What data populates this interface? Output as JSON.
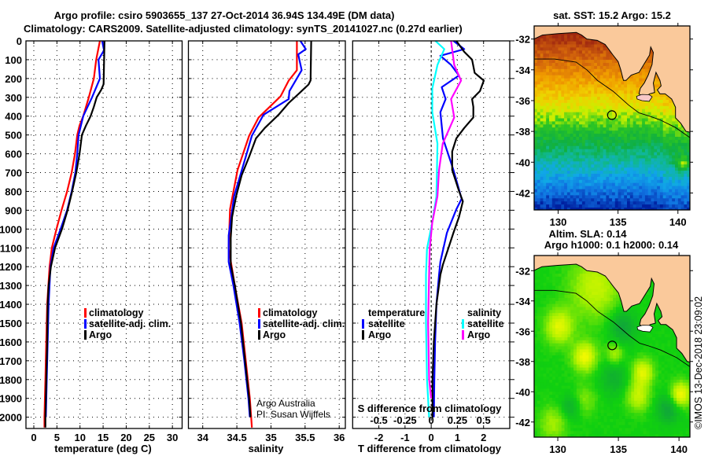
{
  "title": {
    "line1": "Argo profile: csiro 5903655_137 27-Oct-2014 36.94S 134.49E (DM data)",
    "line2": "Climatology: CARS2009. Satellite-adjusted climatology: synTS_20141027.nc (0.27d earlier)"
  },
  "credit": {
    "line1": "Argo Australia",
    "line2": "PI: Susan Wijffels"
  },
  "stamp": "©IMOS 13-Dec-2018 23:09:02",
  "colors": {
    "climatology": "#ff0000",
    "satellite": "#0000ff",
    "argo": "#000000",
    "sal_satellite": "#00ffff",
    "sal_argo": "#ff00ff",
    "land": "#fac99b"
  },
  "chart_data": [
    {
      "type": "line",
      "name": "temperature-profile",
      "xlabel": "temperature (deg C)",
      "ylabel": "depth",
      "xlim": [
        -1.7,
        32.1
      ],
      "ylim": [
        2060,
        0
      ],
      "xticks": [
        "0",
        "5",
        "10",
        "15",
        "20",
        "25",
        "30"
      ],
      "xtick_values": [
        0,
        5,
        10,
        15,
        20,
        25,
        30
      ],
      "yticks": [
        "0",
        "100",
        "200",
        "300",
        "400",
        "500",
        "600",
        "700",
        "800",
        "900",
        "1000",
        "1100",
        "1200",
        "1300",
        "1400",
        "1500",
        "1600",
        "1700",
        "1800",
        "1900",
        "2000"
      ],
      "ytick_values": [
        0,
        100,
        200,
        300,
        400,
        500,
        600,
        700,
        800,
        900,
        1000,
        1100,
        1200,
        1300,
        1400,
        1500,
        1600,
        1700,
        1800,
        1900,
        2000
      ],
      "grid": true,
      "legend": [
        "climatology",
        "satellite-adj. clim.",
        "Argo"
      ],
      "series": [
        {
          "name": "climatology",
          "color": "#ff0000",
          "points": [
            [
              0,
              14.3
            ],
            [
              100,
              13.5
            ],
            [
              200,
              13.0
            ],
            [
              300,
              11.9
            ],
            [
              400,
              10.7
            ],
            [
              450,
              9.9
            ],
            [
              500,
              9.4
            ],
            [
              600,
              8.9
            ],
            [
              700,
              8.2
            ],
            [
              800,
              7.2
            ],
            [
              900,
              6.0
            ],
            [
              1000,
              4.9
            ],
            [
              1100,
              3.9
            ],
            [
              1200,
              3.4
            ],
            [
              1400,
              2.9
            ],
            [
              1600,
              2.7
            ],
            [
              1800,
              2.5
            ],
            [
              2000,
              2.3
            ],
            [
              2055,
              2.3
            ]
          ]
        },
        {
          "name": "satellite-adj. clim.",
          "color": "#0000ff",
          "points": [
            [
              0,
              14.8
            ],
            [
              50,
              15.2
            ],
            [
              100,
              14.0
            ],
            [
              200,
              14.3
            ],
            [
              300,
              12.6
            ],
            [
              400,
              10.7
            ],
            [
              500,
              9.7
            ],
            [
              600,
              9.4
            ],
            [
              700,
              9.0
            ],
            [
              800,
              8.2
            ],
            [
              900,
              7.2
            ],
            [
              1000,
              5.8
            ],
            [
              1100,
              4.3
            ],
            [
              1200,
              3.6
            ],
            [
              1400,
              3.2
            ],
            [
              1600,
              3.0
            ],
            [
              1800,
              2.8
            ],
            [
              2000,
              2.6
            ]
          ]
        },
        {
          "name": "Argo",
          "color": "#000000",
          "points": [
            [
              0,
              15.3
            ],
            [
              230,
              15.1
            ],
            [
              260,
              14.6
            ],
            [
              300,
              13.6
            ],
            [
              350,
              13.0
            ],
            [
              400,
              12.3
            ],
            [
              450,
              11.3
            ],
            [
              500,
              10.4
            ],
            [
              600,
              9.9
            ],
            [
              700,
              9.2
            ],
            [
              800,
              8.3
            ],
            [
              900,
              7.3
            ],
            [
              1000,
              6.1
            ],
            [
              1100,
              4.6
            ],
            [
              1200,
              3.7
            ],
            [
              1300,
              3.2
            ],
            [
              1400,
              3.0
            ],
            [
              1600,
              2.9
            ],
            [
              1800,
              2.7
            ],
            [
              2000,
              2.5
            ],
            [
              2055,
              2.5
            ]
          ]
        }
      ]
    },
    {
      "type": "line",
      "name": "salinity-profile",
      "xlabel": "salinity",
      "xlim": [
        33.79,
        36.09
      ],
      "ylim": [
        2060,
        0
      ],
      "xticks": [
        "34",
        "34.5",
        "35",
        "35.5",
        "36"
      ],
      "xtick_values": [
        34,
        34.5,
        35,
        35.5,
        36
      ],
      "grid": true,
      "legend": [
        "climatology",
        "satellite-adj. clim.",
        "Argo"
      ],
      "series": [
        {
          "name": "climatology",
          "color": "#ff0000",
          "points": [
            [
              0,
              35.38
            ],
            [
              156,
              35.38
            ],
            [
              211,
              35.26
            ],
            [
              295,
              35.14
            ],
            [
              407,
              34.82
            ],
            [
              504,
              34.68
            ],
            [
              686,
              34.51
            ],
            [
              895,
              34.4
            ],
            [
              1104,
              34.38
            ],
            [
              1300,
              34.47
            ],
            [
              1500,
              34.57
            ],
            [
              1700,
              34.63
            ],
            [
              1900,
              34.69
            ],
            [
              2055,
              34.72
            ]
          ]
        },
        {
          "name": "satellite-adj. clim.",
          "color": "#0000ff",
          "points": [
            [
              0,
              35.43
            ],
            [
              44,
              35.51
            ],
            [
              72,
              35.4
            ],
            [
              156,
              35.45
            ],
            [
              267,
              35.27
            ],
            [
              309,
              35.26
            ],
            [
              393,
              34.89
            ],
            [
              504,
              34.72
            ],
            [
              616,
              34.63
            ],
            [
              825,
              34.46
            ],
            [
              1034,
              34.38
            ],
            [
              1174,
              34.38
            ],
            [
              1300,
              34.45
            ],
            [
              1500,
              34.54
            ],
            [
              1700,
              34.61
            ],
            [
              1900,
              34.67
            ],
            [
              2000,
              34.69
            ]
          ]
        },
        {
          "name": "Argo",
          "color": "#000000",
          "points": [
            [
              0,
              35.59
            ],
            [
              210,
              35.58
            ],
            [
              232,
              35.55
            ],
            [
              280,
              35.41
            ],
            [
              330,
              35.26
            ],
            [
              393,
              35.11
            ],
            [
              463,
              34.91
            ],
            [
              518,
              34.78
            ],
            [
              616,
              34.68
            ],
            [
              714,
              34.57
            ],
            [
              825,
              34.49
            ],
            [
              937,
              34.43
            ],
            [
              1048,
              34.41
            ],
            [
              1188,
              34.41
            ],
            [
              1300,
              34.47
            ],
            [
              1500,
              34.56
            ],
            [
              1700,
              34.62
            ],
            [
              1900,
              34.68
            ],
            [
              2000,
              34.7
            ]
          ]
        }
      ]
    },
    {
      "type": "line",
      "name": "difference-profile",
      "xlabel": "T difference from climatology",
      "x2label": "S difference from climatology",
      "xlim": [
        -3,
        3
      ],
      "x2lim": [
        -0.75,
        0.75
      ],
      "ylim": [
        2060,
        0
      ],
      "xticks": [
        "-2",
        "-1",
        "0",
        "1",
        "2"
      ],
      "xtick_values": [
        -2,
        -1,
        0,
        1,
        2
      ],
      "x2ticks": [
        "-0.5",
        "-0.25",
        "0",
        "0.25",
        "0.5"
      ],
      "grid": true,
      "legend": {
        "temperature": {
          "title": "temperature",
          "items": [
            "satellite",
            "Argo"
          ]
        },
        "salinity": {
          "title": "salinity",
          "items": [
            "satellite",
            "Argo"
          ]
        }
      },
      "series": [
        {
          "name": "T satellite",
          "axis": "T",
          "color": "#0000ff",
          "points": [
            [
              0,
              0.85
            ],
            [
              44,
              1.26
            ],
            [
              79,
              0.35
            ],
            [
              128,
              0.76
            ],
            [
              184,
              1.06
            ],
            [
              246,
              0.4
            ],
            [
              309,
              0.55
            ],
            [
              379,
              0.35
            ],
            [
              518,
              0.45
            ],
            [
              686,
              0.85
            ],
            [
              839,
              1.16
            ],
            [
              895,
              0.96
            ],
            [
              1020,
              0.6
            ],
            [
              1174,
              0.35
            ],
            [
              1243,
              0.3
            ],
            [
              1400,
              0.2
            ],
            [
              1600,
              0.15
            ],
            [
              1800,
              0.12
            ],
            [
              2000,
              0.1
            ]
          ]
        },
        {
          "name": "T Argo",
          "axis": "T",
          "color": "#000000",
          "points": [
            [
              0,
              0.96
            ],
            [
              58,
              1.26
            ],
            [
              100,
              1.56
            ],
            [
              170,
              1.66
            ],
            [
              211,
              2.01
            ],
            [
              267,
              1.86
            ],
            [
              309,
              1.56
            ],
            [
              351,
              1.61
            ],
            [
              407,
              1.61
            ],
            [
              463,
              1.26
            ],
            [
              518,
              0.96
            ],
            [
              588,
              0.8
            ],
            [
              686,
              0.8
            ],
            [
              797,
              1.06
            ],
            [
              853,
              1.21
            ],
            [
              937,
              1.06
            ],
            [
              1020,
              0.85
            ],
            [
              1104,
              0.65
            ],
            [
              1188,
              0.45
            ],
            [
              1243,
              0.35
            ],
            [
              1400,
              0.2
            ],
            [
              1600,
              0.1
            ],
            [
              1800,
              0.05
            ],
            [
              2000,
              0.05
            ]
          ]
        },
        {
          "name": "S satellite",
          "axis": "S",
          "color": "#00ffff",
          "points": [
            [
              0,
              0.04
            ],
            [
              44,
              0.125
            ],
            [
              128,
              0.06
            ],
            [
              253,
              0.01
            ],
            [
              379,
              0.01
            ],
            [
              546,
              0.06
            ],
            [
              825,
              0.05
            ],
            [
              965,
              0.01
            ],
            [
              1104,
              -0.04
            ],
            [
              1243,
              -0.05
            ],
            [
              1500,
              -0.05
            ],
            [
              1800,
              -0.04
            ],
            [
              2000,
              -0.02
            ]
          ]
        },
        {
          "name": "S Argo",
          "axis": "S",
          "color": "#ff00ff",
          "points": [
            [
              0,
              0.19
            ],
            [
              128,
              0.22
            ],
            [
              211,
              0.285
            ],
            [
              309,
              0.19
            ],
            [
              407,
              0.22
            ],
            [
              546,
              0.11
            ],
            [
              686,
              0.075
            ],
            [
              825,
              0.06
            ],
            [
              965,
              0.01
            ],
            [
              1104,
              -0.015
            ],
            [
              1243,
              -0.02
            ],
            [
              1500,
              -0.03
            ],
            [
              1800,
              -0.02
            ],
            [
              1900,
              0.0
            ]
          ]
        }
      ]
    },
    {
      "type": "heatmap",
      "name": "sst-map",
      "title": "sat. SST: 15.2 Argo: 15.2",
      "sat_sst": 15.2,
      "argo_sst": 15.2,
      "lonlim": [
        128,
        141
      ],
      "latlim": [
        -43.1,
        -31.15
      ],
      "xticks": [
        "130",
        "135",
        "140"
      ],
      "xtick_values": [
        130,
        135,
        140
      ],
      "yticks": [
        "-32",
        "-34",
        "-36",
        "-38",
        "-40",
        "-42"
      ],
      "ytick_values": [
        -32,
        -34,
        -36,
        -38,
        -40,
        -42
      ],
      "argo_position": {
        "lon": 134.49,
        "lat": -36.94
      }
    },
    {
      "type": "heatmap",
      "name": "sla-map",
      "title": "Altim. SLA: 0.14",
      "subtitle": "Argo h1000: 0.1 h2000: 0.14",
      "sla": 0.14,
      "h1000": 0.1,
      "h2000": 0.14,
      "lonlim": [
        128.05,
        140.9
      ],
      "latlim": [
        -43.0,
        -31.0
      ],
      "xticks": [
        "130",
        "135",
        "140"
      ],
      "xtick_values": [
        130,
        135,
        140
      ],
      "yticks": [
        "-32",
        "-34",
        "-36",
        "-38",
        "-40",
        "-42"
      ],
      "ytick_values": [
        -32,
        -34,
        -36,
        -38,
        -40,
        -42
      ],
      "argo_position": {
        "lon": 134.49,
        "lat": -36.94
      }
    }
  ]
}
